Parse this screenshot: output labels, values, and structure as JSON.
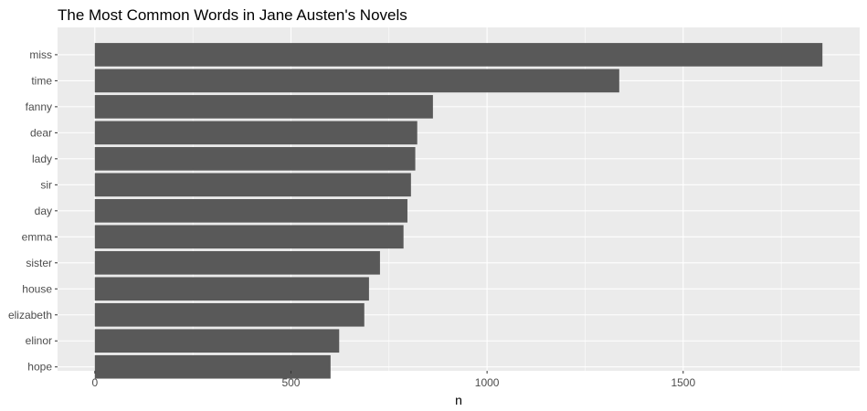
{
  "chart_data": {
    "type": "bar",
    "orientation": "horizontal",
    "title": "The Most Common Words in Jane Austen's Novels",
    "xlabel": "n",
    "ylabel": "",
    "categories": [
      "miss",
      "time",
      "fanny",
      "dear",
      "lady",
      "sir",
      "day",
      "emma",
      "sister",
      "house",
      "elizabeth",
      "elinor",
      "hope"
    ],
    "values": [
      1855,
      1337,
      862,
      822,
      817,
      806,
      797,
      787,
      727,
      699,
      687,
      623,
      601
    ],
    "xlim": [
      -95,
      1950
    ],
    "xticks": [
      0,
      500,
      1000,
      1500
    ],
    "xtick_labels": [
      "0",
      "500",
      "1000",
      "1500"
    ],
    "grid": true,
    "legend": "none",
    "colors": {
      "panel_background": "#ebebeb",
      "grid_major": "#ffffff",
      "bar_fill": "#595959",
      "tick_text": "#4d4d4d",
      "tick_mark": "#333333",
      "title_text": "#000000"
    }
  }
}
